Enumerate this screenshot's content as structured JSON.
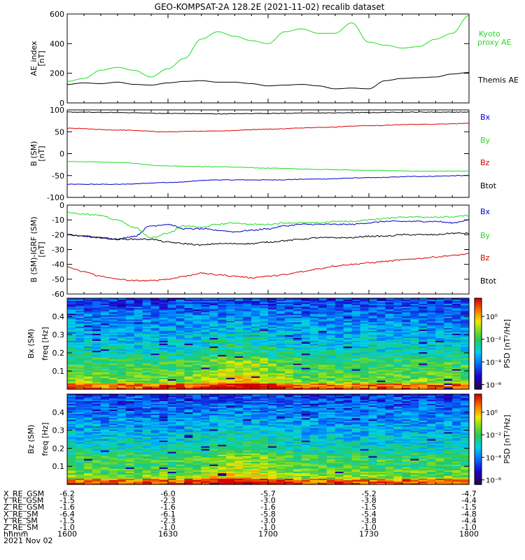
{
  "title": "GEO-KOMPSAT-2A 128.2E (2021-11-02) recalib dataset",
  "x_ticks": [
    "1600",
    "1630",
    "1700",
    "1730",
    "1800"
  ],
  "colors": {
    "black": "#000000",
    "green": "#22dd22",
    "red": "#dd0000",
    "blue": "#0000cc"
  },
  "chart_data": [
    {
      "type": "line",
      "panel": "AE index",
      "ylabel": [
        "AE_index",
        "[nT]"
      ],
      "ylim": [
        0,
        600
      ],
      "yticks": [
        "0",
        "200",
        "400",
        "600"
      ],
      "x": [
        1600,
        1605,
        1610,
        1615,
        1620,
        1625,
        1630,
        1635,
        1640,
        1645,
        1650,
        1655,
        1700,
        1705,
        1710,
        1715,
        1720,
        1725,
        1730,
        1735,
        1740,
        1745,
        1750,
        1755,
        1800
      ],
      "series": [
        {
          "name": "Kyoto proxy AE",
          "label": [
            "Kyoto",
            "proxy AE"
          ],
          "color": "green",
          "values": [
            145,
            165,
            220,
            240,
            220,
            175,
            230,
            300,
            430,
            480,
            450,
            420,
            400,
            480,
            500,
            470,
            470,
            540,
            410,
            390,
            370,
            380,
            430,
            470,
            590
          ]
        },
        {
          "name": "Themis AE",
          "label": [
            "Themis AE"
          ],
          "color": "black",
          "values": [
            125,
            135,
            130,
            140,
            125,
            120,
            135,
            145,
            150,
            140,
            140,
            130,
            115,
            120,
            125,
            115,
            95,
            100,
            95,
            150,
            165,
            170,
            175,
            195,
            205
          ]
        }
      ]
    },
    {
      "type": "line",
      "panel": "B (SM)",
      "ylabel": [
        "B (SM)",
        "[nT]"
      ],
      "ylim": [
        -100,
        100
      ],
      "yticks": [
        "-100",
        "-50",
        "0",
        "50",
        "100"
      ],
      "x": [
        1600,
        1615,
        1630,
        1645,
        1700,
        1715,
        1730,
        1745,
        1800
      ],
      "series": [
        {
          "name": "Bx",
          "label": [
            "Bx"
          ],
          "color": "blue",
          "values": [
            -70,
            -70,
            -66,
            -60,
            -60,
            -58,
            -55,
            -52,
            -50
          ]
        },
        {
          "name": "By",
          "label": [
            "By"
          ],
          "color": "green",
          "values": [
            -18,
            -20,
            -28,
            -30,
            -33,
            -36,
            -38,
            -40,
            -40
          ]
        },
        {
          "name": "Bz",
          "label": [
            "Bz"
          ],
          "color": "red",
          "values": [
            58,
            54,
            50,
            52,
            56,
            60,
            64,
            67,
            69
          ]
        },
        {
          "name": "Btot",
          "label": [
            "Btot"
          ],
          "color": "black",
          "values": [
            95,
            94,
            92,
            91,
            92,
            93,
            94,
            95,
            95
          ]
        }
      ]
    },
    {
      "type": "line",
      "panel": "B (SM) - IGRF (SM)",
      "ylabel": [
        "B (SM)-IGRF (SM)",
        "[nT]"
      ],
      "ylim": [
        -60,
        0
      ],
      "yticks": [
        "-60",
        "-50",
        "-40",
        "-30",
        "-20",
        "-10",
        "0"
      ],
      "x": [
        1600,
        1605,
        1610,
        1615,
        1620,
        1625,
        1630,
        1635,
        1640,
        1645,
        1650,
        1655,
        1700,
        1705,
        1710,
        1715,
        1720,
        1725,
        1730,
        1735,
        1740,
        1745,
        1750,
        1755,
        1800
      ],
      "series": [
        {
          "name": "Bx",
          "label": [
            "Bx"
          ],
          "color": "blue",
          "values": [
            -20,
            -21,
            -22,
            -23,
            -21,
            -14,
            -13,
            -16,
            -16,
            -17,
            -18,
            -17,
            -16,
            -14,
            -13,
            -13,
            -13,
            -13,
            -12,
            -11,
            -11,
            -11,
            -11,
            -12,
            -10
          ]
        },
        {
          "name": "By",
          "label": [
            "By"
          ],
          "color": "green",
          "values": [
            -5,
            -6,
            -7,
            -10,
            -15,
            -22,
            -19,
            -14,
            -15,
            -13,
            -12,
            -13,
            -13,
            -12,
            -12,
            -12,
            -11,
            -11,
            -10,
            -9,
            -8,
            -8,
            -8,
            -8,
            -7
          ]
        },
        {
          "name": "Bz",
          "label": [
            "Bz"
          ],
          "color": "red",
          "values": [
            -42,
            -45,
            -48,
            -50,
            -51,
            -51,
            -50,
            -48,
            -46,
            -47,
            -48,
            -49,
            -48,
            -47,
            -45,
            -43,
            -41,
            -40,
            -39,
            -38,
            -37,
            -36,
            -35,
            -34,
            -33
          ]
        },
        {
          "name": "Btot",
          "label": [
            "Btot"
          ],
          "color": "black",
          "values": [
            -20,
            -21,
            -22,
            -23,
            -23,
            -23,
            -25,
            -26,
            -27,
            -26,
            -26,
            -26,
            -25,
            -24,
            -23,
            -22,
            -22,
            -22,
            -21,
            -21,
            -20,
            -20,
            -20,
            -19,
            -19
          ]
        }
      ]
    },
    {
      "type": "heatmap",
      "panel": "Bx spectrogram",
      "ylabel": [
        "Bx (SM)",
        "freq [Hz]"
      ],
      "ylim": [
        0,
        0.5
      ],
      "yticks": [
        "0.1",
        "0.2",
        "0.3",
        "0.4"
      ],
      "colorbar": {
        "label": "PSD [nT²/Hz]",
        "ticks": [
          "10⁰",
          "10⁻²",
          "10⁻⁴",
          "10⁻⁶"
        ]
      }
    },
    {
      "type": "heatmap",
      "panel": "Bz spectrogram",
      "ylabel": [
        "Bz (SM)",
        "freq [Hz]"
      ],
      "ylim": [
        0,
        0.5
      ],
      "yticks": [
        "0.1",
        "0.2",
        "0.3",
        "0.4"
      ],
      "colorbar": {
        "label": "PSD [nT²/Hz]",
        "ticks": [
          "10⁰",
          "10⁻²",
          "10⁻⁴",
          "10⁻⁶"
        ]
      }
    }
  ],
  "ephemeris": {
    "rows": [
      {
        "label": "X_RE_GSM",
        "values": [
          "-6.2",
          "-6.0",
          "-5.7",
          "-5.2",
          "-4.7"
        ]
      },
      {
        "label": "Y_RE_GSM",
        "values": [
          "-1.5",
          "-2.3",
          "-3.0",
          "-3.8",
          "-4.4"
        ]
      },
      {
        "label": "Z_RE_GSM",
        "values": [
          "-1.6",
          "-1.6",
          "-1.6",
          "-1.5",
          "-1.5"
        ]
      },
      {
        "label": "X_RE_SM",
        "values": [
          "-6.4",
          "-6.1",
          "-5.8",
          "-5.4",
          "-4.8"
        ]
      },
      {
        "label": "Y_RE_SM",
        "values": [
          "-1.5",
          "-2.3",
          "-3.0",
          "-3.8",
          "-4.4"
        ]
      },
      {
        "label": "Z_RE_SM",
        "values": [
          "-1.0",
          "-1.0",
          "-1.0",
          "-1.0",
          "-1.0"
        ]
      },
      {
        "label": "hhmm",
        "values": [
          "1600",
          "1630",
          "1700",
          "1730",
          "1800"
        ]
      }
    ],
    "date": "2021 Nov 02"
  }
}
